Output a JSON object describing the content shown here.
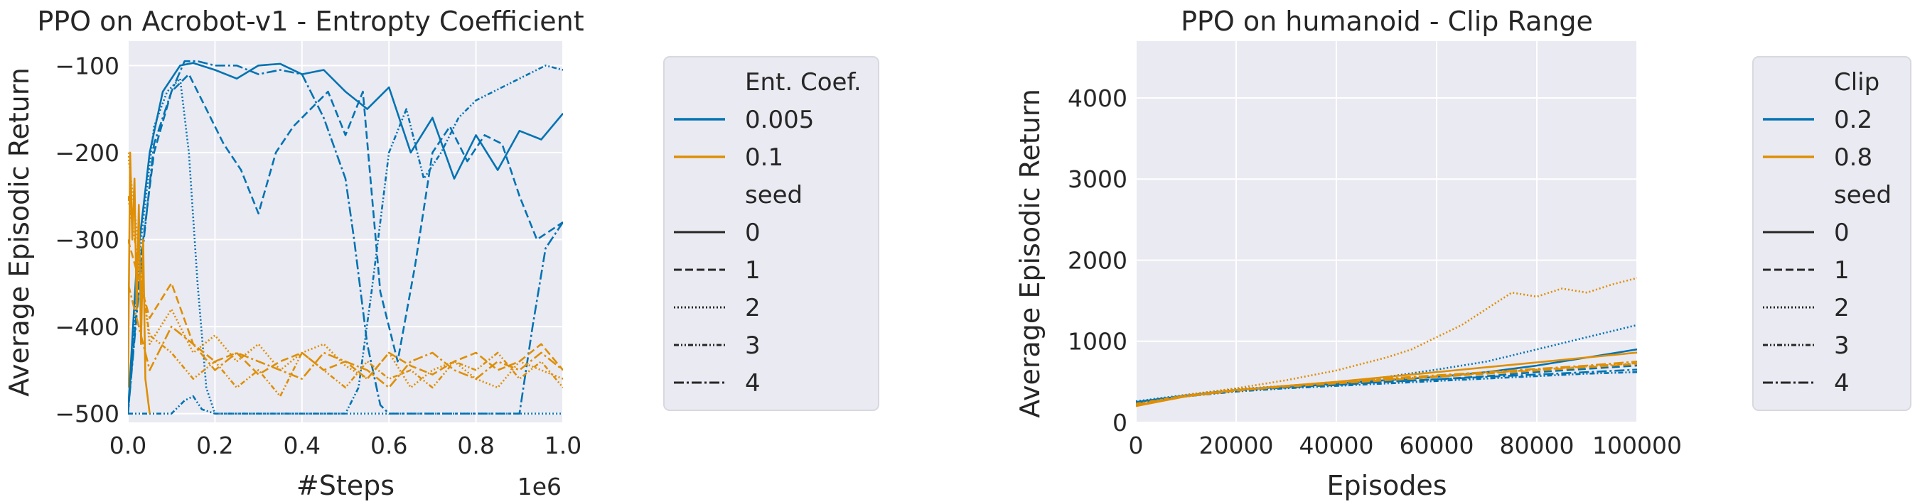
{
  "colors": {
    "series_a": "#0173b2",
    "series_b": "#de8f05",
    "axes_bg": "#eaeaf2",
    "grid": "#ffffff",
    "legend_bg": "#eaeaf2"
  },
  "chart_data": [
    {
      "type": "line",
      "title": "PPO on Acrobot-v1 - Entropty Coefficient",
      "xlabel": "#Steps",
      "ylabel": "Average Episodic Return",
      "x_offset_label": "1e6",
      "xlim": [
        0,
        1.0
      ],
      "ylim": [
        -510,
        -72
      ],
      "xticks": [
        0.0,
        0.2,
        0.4,
        0.6,
        0.8,
        1.0
      ],
      "xtick_labels": [
        "0.0",
        "0.2",
        "0.4",
        "0.6",
        "0.8",
        "1.0"
      ],
      "yticks": [
        -500,
        -400,
        -300,
        -200,
        -100
      ],
      "ytick_labels": [
        "−500",
        "−400",
        "−300",
        "−200",
        "−100"
      ],
      "grid": true,
      "legend": {
        "placement": "outside right",
        "hue_title": "Ent. Coef.",
        "hue_entries": [
          {
            "label": "0.005",
            "color": "#0173b2"
          },
          {
            "label": "0.1",
            "color": "#de8f05"
          }
        ],
        "style_title": "seed",
        "style_entries": [
          {
            "label": "0",
            "dash": "solid"
          },
          {
            "label": "1",
            "dash": "dashed"
          },
          {
            "label": "2",
            "dash": "dotted"
          },
          {
            "label": "3",
            "dash": "densely-dashed"
          },
          {
            "label": "4",
            "dash": "dashdot"
          }
        ]
      },
      "series": [
        {
          "name": "0.005",
          "seed": "0",
          "color": "#0173b2",
          "dash": "solid",
          "x": [
            0,
            0.02,
            0.05,
            0.08,
            0.12,
            0.15,
            0.2,
            0.25,
            0.3,
            0.35,
            0.4,
            0.45,
            0.5,
            0.55,
            0.6,
            0.65,
            0.7,
            0.75,
            0.8,
            0.85,
            0.9,
            0.95,
            1.0
          ],
          "y": [
            -500,
            -330,
            -200,
            -130,
            -100,
            -97,
            -105,
            -115,
            -100,
            -98,
            -110,
            -105,
            -130,
            -150,
            -125,
            -200,
            -160,
            -230,
            -180,
            -220,
            -175,
            -185,
            -155
          ]
        },
        {
          "name": "0.005",
          "seed": "1",
          "color": "#0173b2",
          "dash": "dashed",
          "x": [
            0,
            0.03,
            0.06,
            0.1,
            0.14,
            0.18,
            0.22,
            0.26,
            0.3,
            0.34,
            0.38,
            0.42,
            0.46,
            0.5,
            0.54,
            0.58,
            0.62,
            0.66,
            0.7,
            0.74,
            0.78,
            0.82,
            0.86,
            0.9,
            0.94,
            1.0
          ],
          "y": [
            -500,
            -320,
            -200,
            -130,
            -110,
            -150,
            -190,
            -220,
            -270,
            -200,
            -170,
            -150,
            -130,
            -180,
            -130,
            -360,
            -440,
            -330,
            -200,
            -170,
            -210,
            -180,
            -190,
            -250,
            -300,
            -280
          ]
        },
        {
          "name": "0.005",
          "seed": "2",
          "color": "#0173b2",
          "dash": "dotted",
          "x": [
            0,
            0.03,
            0.06,
            0.09,
            0.12,
            0.14,
            0.16,
            0.18,
            0.2,
            0.3,
            0.4,
            0.5,
            0.6,
            0.7,
            0.8,
            0.9,
            1.0
          ],
          "y": [
            -500,
            -300,
            -170,
            -130,
            -115,
            -200,
            -350,
            -470,
            -500,
            -500,
            -500,
            -500,
            -500,
            -500,
            -500,
            -500,
            -500
          ]
        },
        {
          "name": "0.005",
          "seed": "3",
          "color": "#0173b2",
          "dash": "densely-dashed",
          "x": [
            0,
            0.1,
            0.13,
            0.15,
            0.17,
            0.2,
            0.3,
            0.4,
            0.5,
            0.53,
            0.56,
            0.6,
            0.64,
            0.68,
            0.72,
            0.76,
            0.8,
            0.84,
            0.88,
            0.92,
            0.96,
            1.0
          ],
          "y": [
            -500,
            -500,
            -485,
            -480,
            -495,
            -500,
            -500,
            -500,
            -500,
            -470,
            -360,
            -200,
            -150,
            -230,
            -200,
            -160,
            -140,
            -130,
            -120,
            -110,
            -100,
            -105
          ]
        },
        {
          "name": "0.005",
          "seed": "4",
          "color": "#0173b2",
          "dash": "dashdot",
          "x": [
            0,
            0.03,
            0.06,
            0.1,
            0.13,
            0.16,
            0.2,
            0.25,
            0.3,
            0.35,
            0.4,
            0.45,
            0.5,
            0.52,
            0.55,
            0.58,
            0.6,
            0.7,
            0.8,
            0.9,
            0.93,
            0.96,
            1.0
          ],
          "y": [
            -500,
            -330,
            -190,
            -130,
            -95,
            -95,
            -100,
            -100,
            -110,
            -105,
            -110,
            -160,
            -230,
            -300,
            -420,
            -490,
            -500,
            -500,
            -500,
            -500,
            -400,
            -310,
            -280
          ]
        },
        {
          "name": "0.1",
          "seed": "0",
          "color": "#de8f05",
          "dash": "solid",
          "x": [
            0,
            0.005,
            0.01,
            0.015,
            0.02,
            0.025,
            0.03,
            0.035,
            0.04,
            0.05
          ],
          "y": [
            -470,
            -200,
            -300,
            -230,
            -380,
            -260,
            -420,
            -300,
            -460,
            -500
          ]
        },
        {
          "name": "0.1",
          "seed": "1",
          "color": "#de8f05",
          "dash": "dashed",
          "x": [
            0,
            0.05,
            0.1,
            0.15,
            0.2,
            0.25,
            0.3,
            0.35,
            0.4,
            0.45,
            0.5,
            0.55,
            0.6,
            0.65,
            0.7,
            0.75,
            0.8,
            0.85,
            0.9,
            0.95,
            1.0
          ],
          "y": [
            -300,
            -390,
            -350,
            -420,
            -440,
            -430,
            -455,
            -440,
            -430,
            -450,
            -440,
            -460,
            -430,
            -445,
            -455,
            -440,
            -430,
            -450,
            -440,
            -420,
            -450
          ]
        },
        {
          "name": "0.1",
          "seed": "2",
          "color": "#de8f05",
          "dash": "dotted",
          "x": [
            0,
            0.05,
            0.1,
            0.15,
            0.2,
            0.25,
            0.3,
            0.35,
            0.4,
            0.45,
            0.5,
            0.55,
            0.6,
            0.65,
            0.7,
            0.75,
            0.8,
            0.85,
            0.9,
            0.95,
            1.0
          ],
          "y": [
            -200,
            -420,
            -380,
            -430,
            -410,
            -440,
            -420,
            -450,
            -430,
            -420,
            -445,
            -460,
            -430,
            -470,
            -450,
            -440,
            -460,
            -470,
            -440,
            -450,
            -460
          ]
        },
        {
          "name": "0.1",
          "seed": "3",
          "color": "#de8f05",
          "dash": "densely-dashed",
          "x": [
            0,
            0.05,
            0.1,
            0.15,
            0.2,
            0.25,
            0.3,
            0.35,
            0.4,
            0.45,
            0.5,
            0.55,
            0.6,
            0.65,
            0.7,
            0.75,
            0.8,
            0.85,
            0.9,
            0.95,
            1.0
          ],
          "y": [
            -250,
            -410,
            -430,
            -460,
            -440,
            -470,
            -450,
            -480,
            -430,
            -450,
            -470,
            -440,
            -460,
            -450,
            -470,
            -440,
            -450,
            -430,
            -460,
            -440,
            -470
          ]
        },
        {
          "name": "0.1",
          "seed": "4",
          "color": "#de8f05",
          "dash": "dashdot",
          "x": [
            0,
            0.05,
            0.1,
            0.15,
            0.2,
            0.25,
            0.3,
            0.35,
            0.4,
            0.45,
            0.5,
            0.55,
            0.6,
            0.65,
            0.7,
            0.75,
            0.8,
            0.85,
            0.9,
            0.95,
            1.0
          ],
          "y": [
            -350,
            -450,
            -400,
            -420,
            -450,
            -430,
            -440,
            -450,
            -460,
            -430,
            -440,
            -450,
            -470,
            -440,
            -430,
            -450,
            -460,
            -440,
            -450,
            -430,
            -450
          ]
        }
      ]
    },
    {
      "type": "line",
      "title": "PPO on humanoid - Clip Range",
      "xlabel": "Episodes",
      "ylabel": "Average Episodic Return",
      "xlim": [
        0,
        100000
      ],
      "ylim": [
        0,
        4700
      ],
      "xticks": [
        0,
        20000,
        40000,
        60000,
        80000,
        100000
      ],
      "xtick_labels": [
        "0",
        "20000",
        "40000",
        "60000",
        "80000",
        "100000"
      ],
      "yticks": [
        0,
        1000,
        2000,
        3000,
        4000
      ],
      "ytick_labels": [
        "0",
        "1000",
        "2000",
        "3000",
        "4000"
      ],
      "grid": true,
      "legend": {
        "placement": "outside right",
        "hue_title": "Clip",
        "hue_entries": [
          {
            "label": "0.2",
            "color": "#0173b2"
          },
          {
            "label": "0.8",
            "color": "#de8f05"
          }
        ],
        "style_title": "seed",
        "style_entries": [
          {
            "label": "0",
            "dash": "solid"
          },
          {
            "label": "1",
            "dash": "dashed"
          },
          {
            "label": "2",
            "dash": "dotted"
          },
          {
            "label": "3",
            "dash": "densely-dashed"
          },
          {
            "label": "4",
            "dash": "dashdot"
          }
        ]
      },
      "series": [
        {
          "name": "0.2",
          "seed": "0",
          "color": "#0173b2",
          "dash": "solid",
          "x": [
            0,
            10000,
            20000,
            30000,
            40000,
            50000,
            60000,
            70000,
            80000,
            90000,
            100000
          ],
          "y": [
            250,
            330,
            400,
            440,
            480,
            520,
            560,
            620,
            700,
            800,
            900
          ]
        },
        {
          "name": "0.2",
          "seed": "1",
          "color": "#0173b2",
          "dash": "dashed",
          "x": [
            0,
            10000,
            20000,
            30000,
            40000,
            50000,
            60000,
            70000,
            80000,
            90000,
            100000
          ],
          "y": [
            230,
            320,
            390,
            430,
            460,
            500,
            530,
            570,
            620,
            660,
            700
          ]
        },
        {
          "name": "0.2",
          "seed": "2",
          "color": "#0173b2",
          "dash": "dotted",
          "x": [
            0,
            10000,
            20000,
            30000,
            40000,
            50000,
            60000,
            70000,
            80000,
            90000,
            100000
          ],
          "y": [
            260,
            340,
            410,
            450,
            490,
            560,
            650,
            750,
            900,
            1050,
            1200
          ]
        },
        {
          "name": "0.2",
          "seed": "3",
          "color": "#0173b2",
          "dash": "densely-dashed",
          "x": [
            0,
            10000,
            20000,
            30000,
            40000,
            50000,
            60000,
            70000,
            80000,
            90000,
            100000
          ],
          "y": [
            240,
            320,
            380,
            420,
            450,
            480,
            510,
            540,
            570,
            600,
            620
          ]
        },
        {
          "name": "0.2",
          "seed": "4",
          "color": "#0173b2",
          "dash": "dashdot",
          "x": [
            0,
            10000,
            20000,
            30000,
            40000,
            50000,
            60000,
            70000,
            80000,
            90000,
            100000
          ],
          "y": [
            250,
            330,
            400,
            440,
            470,
            500,
            530,
            560,
            590,
            620,
            650
          ]
        },
        {
          "name": "0.8",
          "seed": "0",
          "color": "#de8f05",
          "dash": "solid",
          "x": [
            0,
            10000,
            20000,
            30000,
            40000,
            50000,
            60000,
            70000,
            80000,
            90000,
            100000
          ],
          "y": [
            200,
            320,
            400,
            450,
            500,
            560,
            620,
            680,
            740,
            800,
            860
          ]
        },
        {
          "name": "0.8",
          "seed": "1",
          "color": "#de8f05",
          "dash": "dashed",
          "x": [
            0,
            10000,
            20000,
            30000,
            40000,
            50000,
            60000,
            70000,
            80000,
            90000,
            100000
          ],
          "y": [
            210,
            320,
            390,
            440,
            480,
            520,
            560,
            600,
            640,
            680,
            720
          ]
        },
        {
          "name": "0.8",
          "seed": "2",
          "color": "#de8f05",
          "dash": "dotted",
          "x": [
            0,
            10000,
            20000,
            30000,
            40000,
            50000,
            55000,
            60000,
            65000,
            70000,
            75000,
            80000,
            85000,
            90000,
            95000,
            100000
          ],
          "y": [
            220,
            340,
            420,
            520,
            640,
            800,
            900,
            1050,
            1200,
            1400,
            1600,
            1550,
            1650,
            1600,
            1700,
            1780
          ]
        },
        {
          "name": "0.8",
          "seed": "3",
          "color": "#de8f05",
          "dash": "densely-dashed",
          "x": [
            0,
            10000,
            20000,
            30000,
            40000,
            50000,
            60000,
            70000,
            80000,
            90000,
            100000
          ],
          "y": [
            230,
            330,
            400,
            450,
            490,
            530,
            570,
            610,
            650,
            690,
            730
          ]
        },
        {
          "name": "0.8",
          "seed": "4",
          "color": "#de8f05",
          "dash": "dashdot",
          "x": [
            0,
            10000,
            20000,
            30000,
            40000,
            50000,
            60000,
            70000,
            80000,
            90000,
            100000
          ],
          "y": [
            220,
            330,
            400,
            450,
            500,
            540,
            580,
            620,
            660,
            700,
            750
          ]
        }
      ]
    }
  ]
}
